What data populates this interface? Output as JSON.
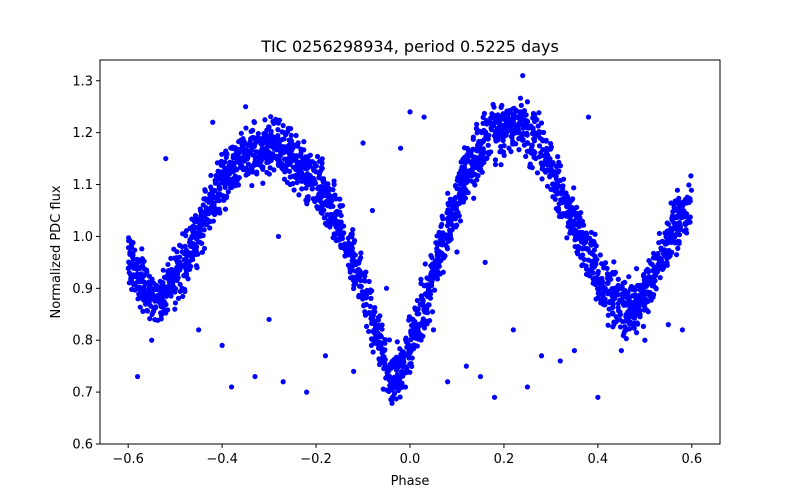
{
  "chart_data": {
    "type": "scatter",
    "title": "TIC 0256298934, period 0.5225 days",
    "xlabel": "Phase",
    "ylabel": "Normalized PDC flux",
    "xlim": [
      -0.66,
      0.66
    ],
    "ylim": [
      0.6,
      1.34
    ],
    "xticks": [
      -0.6,
      -0.4,
      -0.2,
      0.0,
      0.2,
      0.4,
      0.6
    ],
    "xtick_labels": [
      "−0.6",
      "−0.4",
      "−0.2",
      "0.0",
      "0.2",
      "0.4",
      "0.6"
    ],
    "yticks": [
      0.6,
      0.7,
      0.8,
      0.9,
      1.0,
      1.1,
      1.2,
      1.3
    ],
    "ytick_labels": [
      "0.6",
      "0.7",
      "0.8",
      "0.9",
      "1.0",
      "1.1",
      "1.2",
      "1.3"
    ],
    "grid": false,
    "color": "#0000ff",
    "series": [
      {
        "name": "",
        "x": [
          -0.6,
          -0.58,
          -0.56,
          -0.54,
          -0.52,
          -0.5,
          -0.48,
          -0.46,
          -0.44,
          -0.42,
          -0.4,
          -0.38,
          -0.36,
          -0.34,
          -0.32,
          -0.3,
          -0.28,
          -0.26,
          -0.24,
          -0.22,
          -0.2,
          -0.18,
          -0.16,
          -0.14,
          -0.12,
          -0.1,
          -0.08,
          -0.06,
          -0.04,
          -0.02,
          0.0,
          0.02,
          0.04,
          0.06,
          0.08,
          0.1,
          0.12,
          0.14,
          0.16,
          0.18,
          0.2,
          0.22,
          0.24,
          0.26,
          0.28,
          0.3,
          0.32,
          0.34,
          0.36,
          0.38,
          0.4,
          0.42,
          0.44,
          0.46,
          0.48,
          0.5,
          0.52,
          0.54,
          0.56,
          0.58,
          0.6
        ],
        "y": [
          0.96,
          0.93,
          0.89,
          0.87,
          0.89,
          0.92,
          0.95,
          0.99,
          1.03,
          1.07,
          1.1,
          1.13,
          1.15,
          1.16,
          1.165,
          1.17,
          1.165,
          1.16,
          1.14,
          1.12,
          1.1,
          1.07,
          1.04,
          1.0,
          0.95,
          0.9,
          0.84,
          0.78,
          0.72,
          0.74,
          0.78,
          0.84,
          0.9,
          0.96,
          1.02,
          1.07,
          1.12,
          1.15,
          1.18,
          1.2,
          1.21,
          1.215,
          1.21,
          1.19,
          1.17,
          1.13,
          1.09,
          1.05,
          1.01,
          0.97,
          0.93,
          0.9,
          0.88,
          0.86,
          0.87,
          0.89,
          0.93,
          0.97,
          1.01,
          1.04,
          1.07
        ]
      }
    ],
    "outliers": {
      "x": [
        -0.58,
        -0.55,
        -0.52,
        -0.45,
        -0.4,
        -0.38,
        -0.33,
        -0.3,
        -0.27,
        -0.22,
        -0.18,
        -0.12,
        -0.1,
        -0.08,
        -0.05,
        -0.02,
        0.03,
        0.05,
        0.08,
        0.12,
        0.15,
        0.18,
        0.22,
        0.25,
        0.28,
        0.32,
        0.35,
        0.4,
        0.45,
        0.5,
        0.55,
        0.58,
        0.24,
        -0.35,
        0.0,
        -0.28,
        0.38,
        0.16,
        -0.42,
        0.1
      ],
      "y": [
        0.73,
        0.8,
        1.15,
        0.82,
        0.79,
        0.71,
        0.73,
        0.84,
        0.72,
        0.7,
        0.77,
        0.74,
        1.18,
        1.05,
        0.9,
        1.17,
        1.23,
        0.82,
        0.72,
        0.75,
        0.73,
        0.69,
        0.82,
        0.71,
        0.77,
        0.76,
        0.78,
        0.69,
        0.78,
        0.8,
        0.83,
        0.82,
        1.31,
        1.25,
        1.24,
        1.0,
        1.23,
        0.95,
        1.22,
        0.97
      ]
    }
  }
}
